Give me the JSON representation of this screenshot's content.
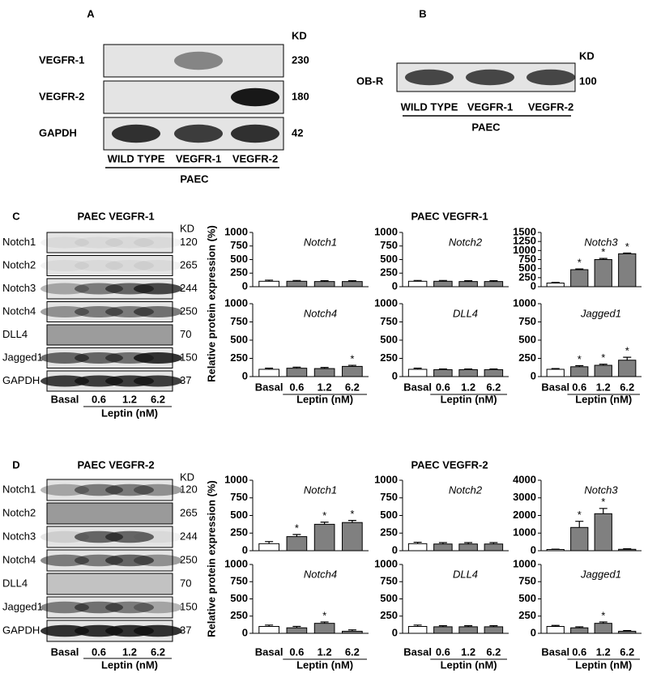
{
  "panels": {
    "A": {
      "letter": "A",
      "unit": "KD",
      "rows": [
        {
          "name": "VEGFR-1",
          "kd": 230
        },
        {
          "name": "VEGFR-2",
          "kd": 180
        },
        {
          "name": "GAPDH",
          "kd": 42
        }
      ],
      "lanes": [
        "WILD TYPE",
        "VEGFR-1",
        "VEGFR-2"
      ],
      "group": "PAEC"
    },
    "B": {
      "letter": "B",
      "unit": "KD",
      "rows": [
        {
          "name": "OB-R",
          "kd": 100
        }
      ],
      "lanes": [
        "WILD TYPE",
        "VEGFR-1",
        "VEGFR-2"
      ],
      "group": "PAEC"
    },
    "C": {
      "letter": "C",
      "title": "PAEC VEGFR-1",
      "unit": "KD",
      "rows": [
        {
          "name": "Notch1",
          "kd": 120
        },
        {
          "name": "Notch2",
          "kd": 265
        },
        {
          "name": "Notch3",
          "kd": 244
        },
        {
          "name": "Notch4",
          "kd": 250
        },
        {
          "name": "DLL4",
          "kd": 70
        },
        {
          "name": "Jagged1",
          "kd": 150
        },
        {
          "name": "GAPDH",
          "kd": 37
        }
      ],
      "lanes": [
        "Basal",
        "0.6",
        "1.2",
        "6.2"
      ],
      "group": "Leptin (nM)"
    },
    "D": {
      "letter": "D",
      "title": "PAEC VEGFR-2",
      "unit": "KD",
      "rows": [
        {
          "name": "Notch1",
          "kd": 120
        },
        {
          "name": "Notch2",
          "kd": 265
        },
        {
          "name": "Notch3",
          "kd": 244
        },
        {
          "name": "Notch4",
          "kd": 250
        },
        {
          "name": "DLL4",
          "kd": 70
        },
        {
          "name": "Jagged1",
          "kd": 150
        },
        {
          "name": "GAPDH",
          "kd": 37
        }
      ],
      "lanes": [
        "Basal",
        "0.6",
        "1.2",
        "6.2"
      ],
      "group": "Leptin (nM)"
    }
  },
  "chart_data": [
    {
      "type": "bar",
      "title": "PAEC VEGFR-1",
      "y_label": "Relative protein expression (%)",
      "x_label": "Leptin (nM)",
      "categories": [
        "Basal",
        "0.6",
        "1.2",
        "6.2"
      ],
      "colors": [
        "#ffffff",
        "#808080",
        "#808080",
        "#808080"
      ],
      "charts": [
        {
          "name": "Notch1",
          "ylim": [
            0,
            1000
          ],
          "yticks": [
            0,
            250,
            500,
            750,
            1000
          ],
          "values": [
            100,
            100,
            95,
            95
          ],
          "errors": [
            20,
            15,
            15,
            15
          ],
          "annotations": [
            null,
            null,
            null,
            null
          ]
        },
        {
          "name": "Notch2",
          "ylim": [
            0,
            1000
          ],
          "yticks": [
            0,
            250,
            500,
            750,
            1000
          ],
          "values": [
            100,
            100,
            95,
            95
          ],
          "errors": [
            15,
            15,
            15,
            15
          ],
          "annotations": [
            null,
            null,
            null,
            null
          ]
        },
        {
          "name": "Notch3",
          "ylim": [
            0,
            1500
          ],
          "yticks": [
            0,
            250,
            500,
            750,
            1000,
            1250,
            1500
          ],
          "values": [
            100,
            470,
            750,
            910
          ],
          "errors": [
            20,
            20,
            30,
            20
          ],
          "annotations": [
            null,
            "*",
            "*",
            "*"
          ]
        },
        {
          "name": "Notch4",
          "ylim": [
            0,
            1000
          ],
          "yticks": [
            0,
            250,
            500,
            750,
            1000
          ],
          "values": [
            100,
            115,
            110,
            140
          ],
          "errors": [
            15,
            15,
            15,
            15
          ],
          "annotations": [
            null,
            null,
            null,
            "*"
          ]
        },
        {
          "name": "DLL4",
          "ylim": [
            0,
            1000
          ],
          "yticks": [
            0,
            250,
            500,
            750,
            1000
          ],
          "values": [
            100,
            95,
            95,
            95
          ],
          "errors": [
            15,
            10,
            10,
            10
          ],
          "annotations": [
            null,
            null,
            null,
            null
          ]
        },
        {
          "name": "Jagged1",
          "ylim": [
            0,
            1000
          ],
          "yticks": [
            0,
            250,
            500,
            750,
            1000
          ],
          "values": [
            100,
            135,
            155,
            225
          ],
          "errors": [
            10,
            15,
            15,
            40
          ],
          "annotations": [
            null,
            "*",
            "*",
            "*"
          ]
        }
      ]
    },
    {
      "type": "bar",
      "title": "PAEC VEGFR-2",
      "y_label": "Relative protein expression (%)",
      "x_label": "Leptin (nM)",
      "categories": [
        "Basal",
        "0.6",
        "1.2",
        "6.2"
      ],
      "colors": [
        "#ffffff",
        "#808080",
        "#808080",
        "#808080"
      ],
      "charts": [
        {
          "name": "Notch1",
          "ylim": [
            0,
            1000
          ],
          "yticks": [
            0,
            250,
            500,
            750,
            1000
          ],
          "values": [
            100,
            200,
            375,
            400
          ],
          "errors": [
            30,
            30,
            30,
            30
          ],
          "annotations": [
            null,
            "*",
            "*",
            "*"
          ]
        },
        {
          "name": "Notch2",
          "ylim": [
            0,
            1000
          ],
          "yticks": [
            0,
            250,
            500,
            750,
            1000
          ],
          "values": [
            100,
            95,
            95,
            95
          ],
          "errors": [
            20,
            20,
            20,
            20
          ],
          "annotations": [
            null,
            null,
            null,
            null
          ]
        },
        {
          "name": "Notch3",
          "ylim": [
            0,
            4000
          ],
          "yticks": [
            0,
            1000,
            2000,
            3000,
            4000
          ],
          "values": [
            70,
            1320,
            2100,
            80
          ],
          "errors": [
            20,
            350,
            300,
            30
          ],
          "annotations": [
            null,
            "*",
            "*",
            null
          ]
        },
        {
          "name": "Notch4",
          "ylim": [
            0,
            1000
          ],
          "yticks": [
            0,
            250,
            500,
            750,
            1000
          ],
          "values": [
            100,
            80,
            145,
            30
          ],
          "errors": [
            20,
            20,
            20,
            20
          ],
          "annotations": [
            null,
            null,
            "*",
            null
          ]
        },
        {
          "name": "DLL4",
          "ylim": [
            0,
            1000
          ],
          "yticks": [
            0,
            250,
            500,
            750,
            1000
          ],
          "values": [
            100,
            95,
            95,
            95
          ],
          "errors": [
            20,
            15,
            15,
            15
          ],
          "annotations": [
            null,
            null,
            null,
            null
          ]
        },
        {
          "name": "Jagged1",
          "ylim": [
            0,
            1000
          ],
          "yticks": [
            0,
            250,
            500,
            750,
            1000
          ],
          "values": [
            100,
            80,
            145,
            30
          ],
          "errors": [
            15,
            15,
            20,
            10
          ],
          "annotations": [
            null,
            null,
            "*",
            null
          ]
        }
      ]
    }
  ]
}
